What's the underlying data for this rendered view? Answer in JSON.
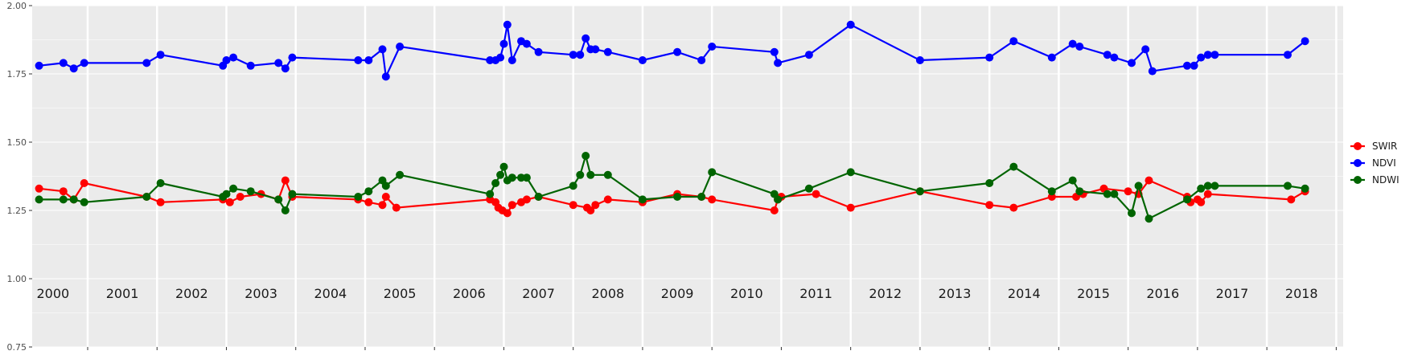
{
  "chart_data": {
    "type": "line",
    "title": "",
    "xlabel": "",
    "ylabel": "",
    "ylim": [
      0.75,
      2.0
    ],
    "xlim": [
      1999.7,
      2018.6
    ],
    "y_ticks": [
      "0.75",
      "1.00",
      "1.25",
      "1.50",
      "1.75",
      "2.00"
    ],
    "year_labels": [
      "2000",
      "2001",
      "2002",
      "2003",
      "2004",
      "2005",
      "2006",
      "2007",
      "2008",
      "2009",
      "2010",
      "2011",
      "2012",
      "2013",
      "2014",
      "2015",
      "2016",
      "2017",
      "2018"
    ],
    "grid": true,
    "legend_position": "right",
    "series": [
      {
        "name": "SWIR",
        "color": "#ff0000",
        "points": [
          [
            1999.8,
            1.33
          ],
          [
            2000.15,
            1.32
          ],
          [
            2000.3,
            1.29
          ],
          [
            2000.45,
            1.35
          ],
          [
            2001.35,
            1.3
          ],
          [
            2001.55,
            1.28
          ],
          [
            2002.45,
            1.29
          ],
          [
            2002.55,
            1.28
          ],
          [
            2002.7,
            1.3
          ],
          [
            2003.0,
            1.31
          ],
          [
            2003.25,
            1.29
          ],
          [
            2003.35,
            1.36
          ],
          [
            2003.45,
            1.3
          ],
          [
            2004.4,
            1.29
          ],
          [
            2004.55,
            1.28
          ],
          [
            2004.75,
            1.27
          ],
          [
            2004.8,
            1.3
          ],
          [
            2004.95,
            1.26
          ],
          [
            2006.3,
            1.29
          ],
          [
            2006.38,
            1.28
          ],
          [
            2006.42,
            1.26
          ],
          [
            2006.48,
            1.25
          ],
          [
            2006.55,
            1.24
          ],
          [
            2006.62,
            1.27
          ],
          [
            2006.75,
            1.28
          ],
          [
            2006.83,
            1.29
          ],
          [
            2007.0,
            1.3
          ],
          [
            2007.5,
            1.27
          ],
          [
            2007.7,
            1.26
          ],
          [
            2007.75,
            1.25
          ],
          [
            2007.82,
            1.27
          ],
          [
            2008.0,
            1.29
          ],
          [
            2008.5,
            1.28
          ],
          [
            2009.0,
            1.31
          ],
          [
            2009.35,
            1.3
          ],
          [
            2009.5,
            1.29
          ],
          [
            2010.4,
            1.25
          ],
          [
            2010.45,
            1.29
          ],
          [
            2010.5,
            1.3
          ],
          [
            2011.0,
            1.31
          ],
          [
            2011.5,
            1.26
          ],
          [
            2012.5,
            1.32
          ],
          [
            2013.5,
            1.27
          ],
          [
            2013.85,
            1.26
          ],
          [
            2014.4,
            1.3
          ],
          [
            2014.75,
            1.3
          ],
          [
            2014.85,
            1.31
          ],
          [
            2015.15,
            1.33
          ],
          [
            2015.5,
            1.32
          ],
          [
            2015.65,
            1.31
          ],
          [
            2015.8,
            1.36
          ],
          [
            2016.35,
            1.3
          ],
          [
            2016.4,
            1.28
          ],
          [
            2016.5,
            1.29
          ],
          [
            2016.55,
            1.28
          ],
          [
            2016.65,
            1.31
          ],
          [
            2017.85,
            1.29
          ],
          [
            2018.05,
            1.32
          ]
        ]
      },
      {
        "name": "NDVI",
        "color": "#0000ff",
        "points": [
          [
            1999.8,
            1.78
          ],
          [
            2000.15,
            1.79
          ],
          [
            2000.3,
            1.77
          ],
          [
            2000.45,
            1.79
          ],
          [
            2001.35,
            1.79
          ],
          [
            2001.55,
            1.82
          ],
          [
            2002.45,
            1.78
          ],
          [
            2002.5,
            1.8
          ],
          [
            2002.6,
            1.81
          ],
          [
            2002.85,
            1.78
          ],
          [
            2003.25,
            1.79
          ],
          [
            2003.35,
            1.77
          ],
          [
            2003.45,
            1.81
          ],
          [
            2004.4,
            1.8
          ],
          [
            2004.55,
            1.8
          ],
          [
            2004.75,
            1.84
          ],
          [
            2004.8,
            1.74
          ],
          [
            2005.0,
            1.85
          ],
          [
            2006.3,
            1.8
          ],
          [
            2006.38,
            1.8
          ],
          [
            2006.45,
            1.81
          ],
          [
            2006.5,
            1.86
          ],
          [
            2006.55,
            1.93
          ],
          [
            2006.62,
            1.8
          ],
          [
            2006.75,
            1.87
          ],
          [
            2006.83,
            1.86
          ],
          [
            2007.0,
            1.83
          ],
          [
            2007.5,
            1.82
          ],
          [
            2007.6,
            1.82
          ],
          [
            2007.68,
            1.88
          ],
          [
            2007.75,
            1.84
          ],
          [
            2007.82,
            1.84
          ],
          [
            2008.0,
            1.83
          ],
          [
            2008.5,
            1.8
          ],
          [
            2009.0,
            1.83
          ],
          [
            2009.35,
            1.8
          ],
          [
            2009.5,
            1.85
          ],
          [
            2010.4,
            1.83
          ],
          [
            2010.45,
            1.79
          ],
          [
            2010.9,
            1.82
          ],
          [
            2011.5,
            1.93
          ],
          [
            2012.5,
            1.8
          ],
          [
            2013.5,
            1.81
          ],
          [
            2013.85,
            1.87
          ],
          [
            2014.4,
            1.81
          ],
          [
            2014.7,
            1.86
          ],
          [
            2014.8,
            1.85
          ],
          [
            2015.2,
            1.82
          ],
          [
            2015.3,
            1.81
          ],
          [
            2015.55,
            1.79
          ],
          [
            2015.75,
            1.84
          ],
          [
            2015.85,
            1.76
          ],
          [
            2016.35,
            1.78
          ],
          [
            2016.45,
            1.78
          ],
          [
            2016.55,
            1.81
          ],
          [
            2016.65,
            1.82
          ],
          [
            2016.75,
            1.82
          ],
          [
            2017.8,
            1.82
          ],
          [
            2018.05,
            1.87
          ]
        ]
      },
      {
        "name": "NDWI",
        "color": "#006400",
        "points": [
          [
            1999.8,
            1.29
          ],
          [
            2000.15,
            1.29
          ],
          [
            2000.3,
            1.29
          ],
          [
            2000.45,
            1.28
          ],
          [
            2001.35,
            1.3
          ],
          [
            2001.55,
            1.35
          ],
          [
            2002.45,
            1.3
          ],
          [
            2002.5,
            1.31
          ],
          [
            2002.6,
            1.33
          ],
          [
            2002.85,
            1.32
          ],
          [
            2003.25,
            1.29
          ],
          [
            2003.35,
            1.25
          ],
          [
            2003.45,
            1.31
          ],
          [
            2004.4,
            1.3
          ],
          [
            2004.55,
            1.32
          ],
          [
            2004.75,
            1.36
          ],
          [
            2004.8,
            1.34
          ],
          [
            2005.0,
            1.38
          ],
          [
            2006.3,
            1.31
          ],
          [
            2006.38,
            1.35
          ],
          [
            2006.45,
            1.38
          ],
          [
            2006.5,
            1.41
          ],
          [
            2006.55,
            1.36
          ],
          [
            2006.62,
            1.37
          ],
          [
            2006.75,
            1.37
          ],
          [
            2006.83,
            1.37
          ],
          [
            2007.0,
            1.3
          ],
          [
            2007.5,
            1.34
          ],
          [
            2007.6,
            1.38
          ],
          [
            2007.68,
            1.45
          ],
          [
            2007.75,
            1.38
          ],
          [
            2008.0,
            1.38
          ],
          [
            2008.5,
            1.29
          ],
          [
            2009.0,
            1.3
          ],
          [
            2009.35,
            1.3
          ],
          [
            2009.5,
            1.39
          ],
          [
            2010.4,
            1.31
          ],
          [
            2010.45,
            1.29
          ],
          [
            2010.9,
            1.33
          ],
          [
            2011.5,
            1.39
          ],
          [
            2012.5,
            1.32
          ],
          [
            2013.5,
            1.35
          ],
          [
            2013.85,
            1.41
          ],
          [
            2014.4,
            1.32
          ],
          [
            2014.7,
            1.36
          ],
          [
            2014.8,
            1.32
          ],
          [
            2015.2,
            1.31
          ],
          [
            2015.3,
            1.31
          ],
          [
            2015.55,
            1.24
          ],
          [
            2015.65,
            1.34
          ],
          [
            2015.8,
            1.22
          ],
          [
            2016.35,
            1.29
          ],
          [
            2016.55,
            1.33
          ],
          [
            2016.65,
            1.34
          ],
          [
            2016.75,
            1.34
          ],
          [
            2017.8,
            1.34
          ],
          [
            2018.05,
            1.33
          ]
        ]
      }
    ]
  }
}
